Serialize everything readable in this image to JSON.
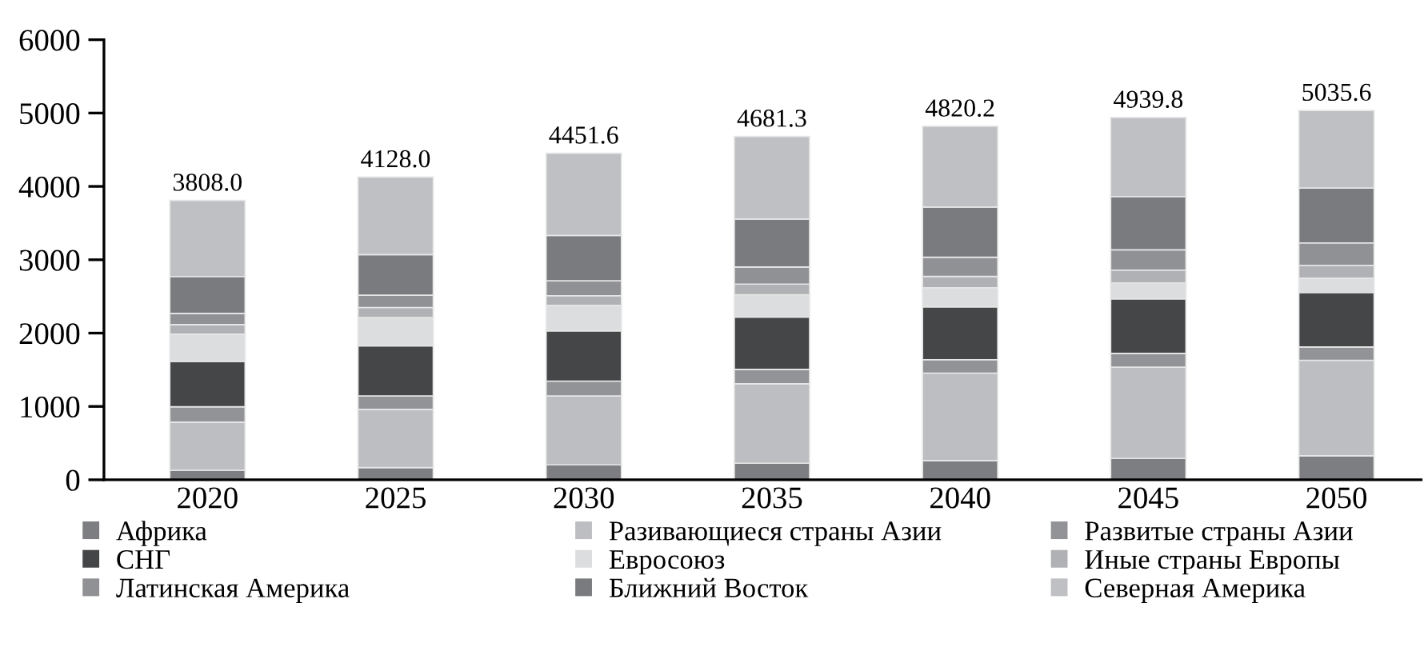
{
  "chart_data": {
    "type": "bar",
    "stacked": true,
    "categories": [
      "2020",
      "2025",
      "2030",
      "2035",
      "2040",
      "2045",
      "2050"
    ],
    "series": [
      {
        "name": "Африка",
        "color": "#7d7e82",
        "values": [
          130,
          167,
          204,
          225,
          262,
          291,
          327
        ]
      },
      {
        "name": "Разивающиеся страны Азии",
        "color": "#bdbec2",
        "values": [
          655,
          793,
          938,
          1084,
          1193,
          1244,
          1302
        ]
      },
      {
        "name": "Развитые страны Азии",
        "color": "#929396",
        "values": [
          211,
          182,
          204,
          196,
          182,
          189,
          182
        ]
      },
      {
        "name": "СНГ",
        "color": "#454648",
        "values": [
          618,
          684,
          684,
          713,
          720,
          742,
          742
        ]
      },
      {
        "name": "Евросоюз",
        "color": "#dcdddf",
        "values": [
          371,
          385,
          349,
          305,
          262,
          218,
          196
        ]
      },
      {
        "name": "Иные страны Европы",
        "color": "#b0b1b4",
        "values": [
          131,
          138,
          131,
          145,
          153,
          175,
          175
        ]
      },
      {
        "name": "Латинская Америка",
        "color": "#909194",
        "values": [
          153,
          167,
          204,
          233,
          262,
          276,
          305
        ]
      },
      {
        "name": "Ближний Восток",
        "color": "#7a7b7f",
        "values": [
          502,
          553,
          618,
          655,
          684,
          727,
          749
        ]
      },
      {
        "name": "Северная Америка",
        "color": "#bfc0c4",
        "values": [
          1037,
          1059,
          1119.6,
          1125.3,
          1102.2,
          1077.8,
          1057.6
        ]
      }
    ],
    "totals": [
      "3808.0",
      "4128.0",
      "4451.6",
      "4681.3",
      "4820.2",
      "4939.8",
      "5035.6"
    ],
    "ylim": [
      0,
      6000
    ],
    "yticks": [
      0,
      1000,
      2000,
      3000,
      4000,
      5000,
      6000
    ],
    "legend": "bottom",
    "grid": false
  }
}
